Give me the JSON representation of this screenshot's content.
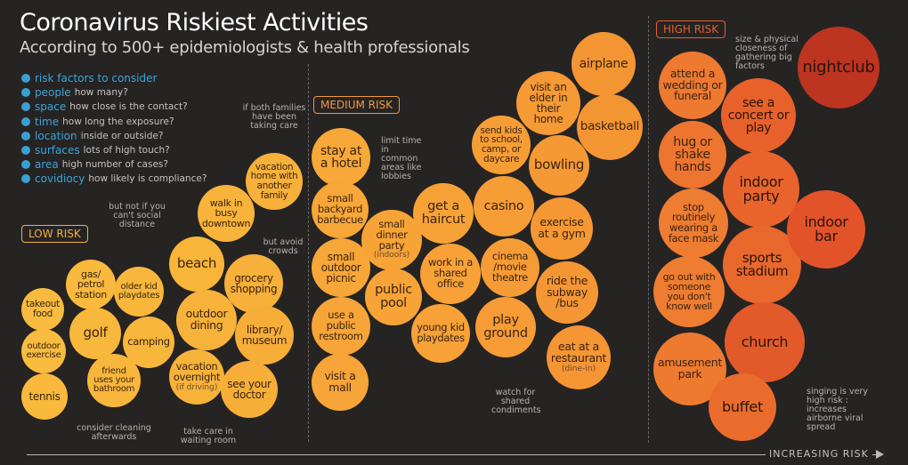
{
  "title": "Coronavirus Riskiest Activities",
  "subtitle": "According to 500+ epidemiologists & health professionals",
  "legend": {
    "heading": "risk factors to consider",
    "items": [
      {
        "key": "people",
        "desc": "how many?"
      },
      {
        "key": "space",
        "desc": "how close is the contact?"
      },
      {
        "key": "time",
        "desc": "how long the exposure?"
      },
      {
        "key": "location",
        "desc": "inside or outside?"
      },
      {
        "key": "surfaces",
        "desc": "lots of high touch?"
      },
      {
        "key": "area",
        "desc": "high number of cases?"
      },
      {
        "key": "covidiocy",
        "desc": "how likely is compliance?"
      }
    ]
  },
  "risk_levels": {
    "low": "LOW RISK",
    "medium": "MEDIUM RISK",
    "high": "HIGH RISK"
  },
  "axis_label": "INCREASING RISK",
  "colors": {
    "background": "#262323",
    "low": "#f8b53b",
    "medium": "#f69a38",
    "high": "#e4582a",
    "accent": "#39a6da",
    "low_box": "#f2b23a",
    "medium_box": "#f19a3b",
    "high_box": "#e4612f"
  },
  "bubbles": {
    "takeout_food": "takeout food",
    "outdoor_exercise": "outdoor exercise",
    "tennis": "tennis",
    "gas_station": "gas/ petrol station",
    "golf": "golf",
    "older_kid_playdates": "older kid playdates",
    "camping": "camping",
    "friend_bathroom": "friend uses your bathroom",
    "beach": "beach",
    "outdoor_dining": "outdoor dining",
    "vacation_overnight": "vacation overnight",
    "vacation_overnight_sub": "(if driving)",
    "walk_downtown": "walk in busy downtown",
    "vacation_home": "vacation home with another family",
    "grocery_shopping": "grocery shopping",
    "library_museum": "library/ museum",
    "see_your_doctor": "see your doctor",
    "stay_hotel": "stay at a hotel",
    "backyard_barbecue": "small backyard barbecue",
    "outdoor_picnic": "small outdoor picnic",
    "public_restroom": "use a public restroom",
    "visit_mall": "visit a mall",
    "dinner_party": "small dinner party",
    "dinner_party_sub": "(indoors)",
    "public_pool": "public pool",
    "get_haircut": "get a haircut",
    "shared_office": "work in a shared office",
    "young_kid_playdates": "young kid playdates",
    "send_kids_school": "send kids to school, camp, or daycare",
    "casino": "casino",
    "cinema": "cinema /movie theatre",
    "play_ground": "play ground",
    "visit_elder": "visit an elder in their home",
    "airplane": "airplane",
    "basketball": "basketball",
    "bowling": "bowling",
    "exercise_gym": "exercise at a gym",
    "ride_subway": "ride the subway /bus",
    "eat_restaurant": "eat at a restaurant",
    "eat_restaurant_sub": "(dine-in)",
    "attend_wedding": "attend a wedding or funeral",
    "hug_shake": "hug or shake hands",
    "stop_face_mask": "stop routinely wearing a face mask",
    "go_out_someone": "go out with someone you don't know well",
    "amusement_park": "amusement park",
    "see_concert": "see a concert or play",
    "indoor_party": "indoor party",
    "sports_stadium": "sports stadium",
    "church": "church",
    "buffet": "buffet",
    "indoor_bar": "indoor bar",
    "nightclub": "nightclub"
  },
  "notes": {
    "not_social_distance": "but not if you can't social distance",
    "both_families": "if both families have been taking care",
    "avoid_crowds": "but avoid crowds",
    "limit_time": "limit time in common areas like lobbies",
    "consider_cleaning": "consider cleaning afterwards",
    "take_care_waiting": "take care in waiting room",
    "shared_condiments": "watch for shared condiments",
    "size_closeness": "size & physical closeness of gathering big factors",
    "singing": "singing is very high risk : increases airborne viral spread"
  }
}
